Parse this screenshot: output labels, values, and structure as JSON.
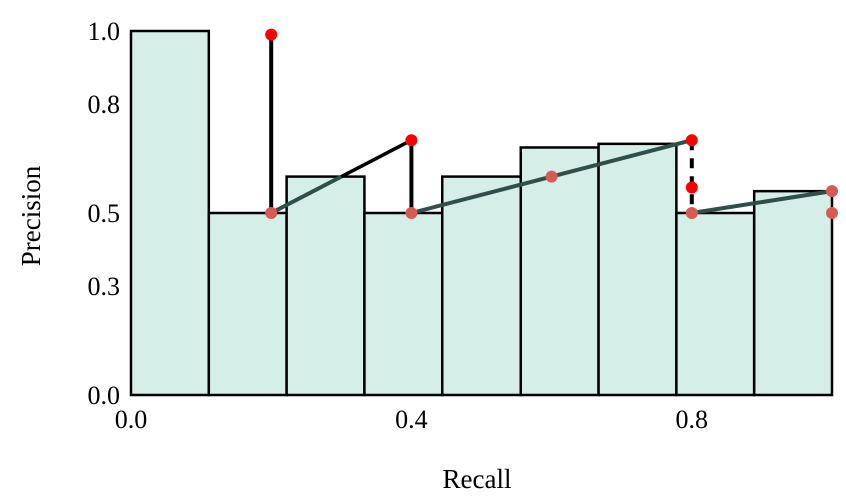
{
  "chart_data": {
    "type": "bar",
    "title": "",
    "xlabel": "Recall",
    "ylabel": "Precision",
    "xlim": [
      0.0,
      1.0
    ],
    "ylim": [
      0.0,
      1.0
    ],
    "xticks": [
      {
        "value": 0.0,
        "label": "0.0"
      },
      {
        "value": 0.4,
        "label": "0.4"
      },
      {
        "value": 0.8,
        "label": "0.8"
      }
    ],
    "yticks": [
      {
        "value": 0.0,
        "label": "0.0"
      },
      {
        "value": 0.3,
        "label": "0.3"
      },
      {
        "value": 0.5,
        "label": "0.5"
      },
      {
        "value": 0.8,
        "label": "0.8"
      },
      {
        "value": 1.0,
        "label": "1.0"
      }
    ],
    "bars": [
      {
        "x0": 0.0,
        "x1": 0.111,
        "value": 1.0
      },
      {
        "x0": 0.111,
        "x1": 0.222,
        "value": 0.5
      },
      {
        "x0": 0.222,
        "x1": 0.333,
        "value": 0.6
      },
      {
        "x0": 0.333,
        "x1": 0.444,
        "value": 0.5
      },
      {
        "x0": 0.444,
        "x1": 0.556,
        "value": 0.6
      },
      {
        "x0": 0.556,
        "x1": 0.667,
        "value": 0.68
      },
      {
        "x0": 0.667,
        "x1": 0.778,
        "value": 0.69
      },
      {
        "x0": 0.778,
        "x1": 0.889,
        "value": 0.5
      },
      {
        "x0": 0.889,
        "x1": 1.0,
        "value": 0.56
      }
    ],
    "vertical_drops": [
      {
        "x": 0.2,
        "y_top": 0.99,
        "y_bottom": 0.5
      },
      {
        "x": 0.4,
        "y_top": 0.7,
        "y_bottom": 0.5
      },
      {
        "x": 0.8,
        "y_top": 0.7,
        "y_bottom": 0.5,
        "dashed": true
      }
    ],
    "black_segments": [
      {
        "points": [
          [
            0.2,
            0.5
          ],
          [
            0.4,
            0.7
          ]
        ]
      },
      {
        "points": [
          [
            0.8,
            0.5
          ],
          [
            1.0,
            0.56
          ]
        ]
      }
    ],
    "interpolated_line": [
      {
        "points": [
          [
            0.2,
            0.5
          ],
          [
            0.3,
            0.6
          ]
        ]
      },
      {
        "points": [
          [
            0.4,
            0.5
          ],
          [
            0.6,
            0.6
          ],
          [
            0.8,
            0.7
          ]
        ]
      },
      {
        "points": [
          [
            0.8,
            0.5
          ],
          [
            1.0,
            0.56
          ]
        ]
      }
    ],
    "red_points": [
      {
        "x": 0.2,
        "y": 0.99
      },
      {
        "x": 0.4,
        "y": 0.7
      },
      {
        "x": 0.8,
        "y": 0.7
      },
      {
        "x": 0.8,
        "y": 0.57
      }
    ],
    "salmon_points": [
      {
        "x": 0.2,
        "y": 0.5
      },
      {
        "x": 0.4,
        "y": 0.5
      },
      {
        "x": 0.6,
        "y": 0.6
      },
      {
        "x": 0.8,
        "y": 0.5
      },
      {
        "x": 1.0,
        "y": 0.56
      },
      {
        "x": 1.0,
        "y": 0.5
      }
    ],
    "colors": {
      "bar_fill": "#d5eee8",
      "bar_edge": "#000000",
      "interp_line": "#2f4f4a",
      "red_point": "#ff0000",
      "salmon_point": "#d85a55"
    }
  }
}
